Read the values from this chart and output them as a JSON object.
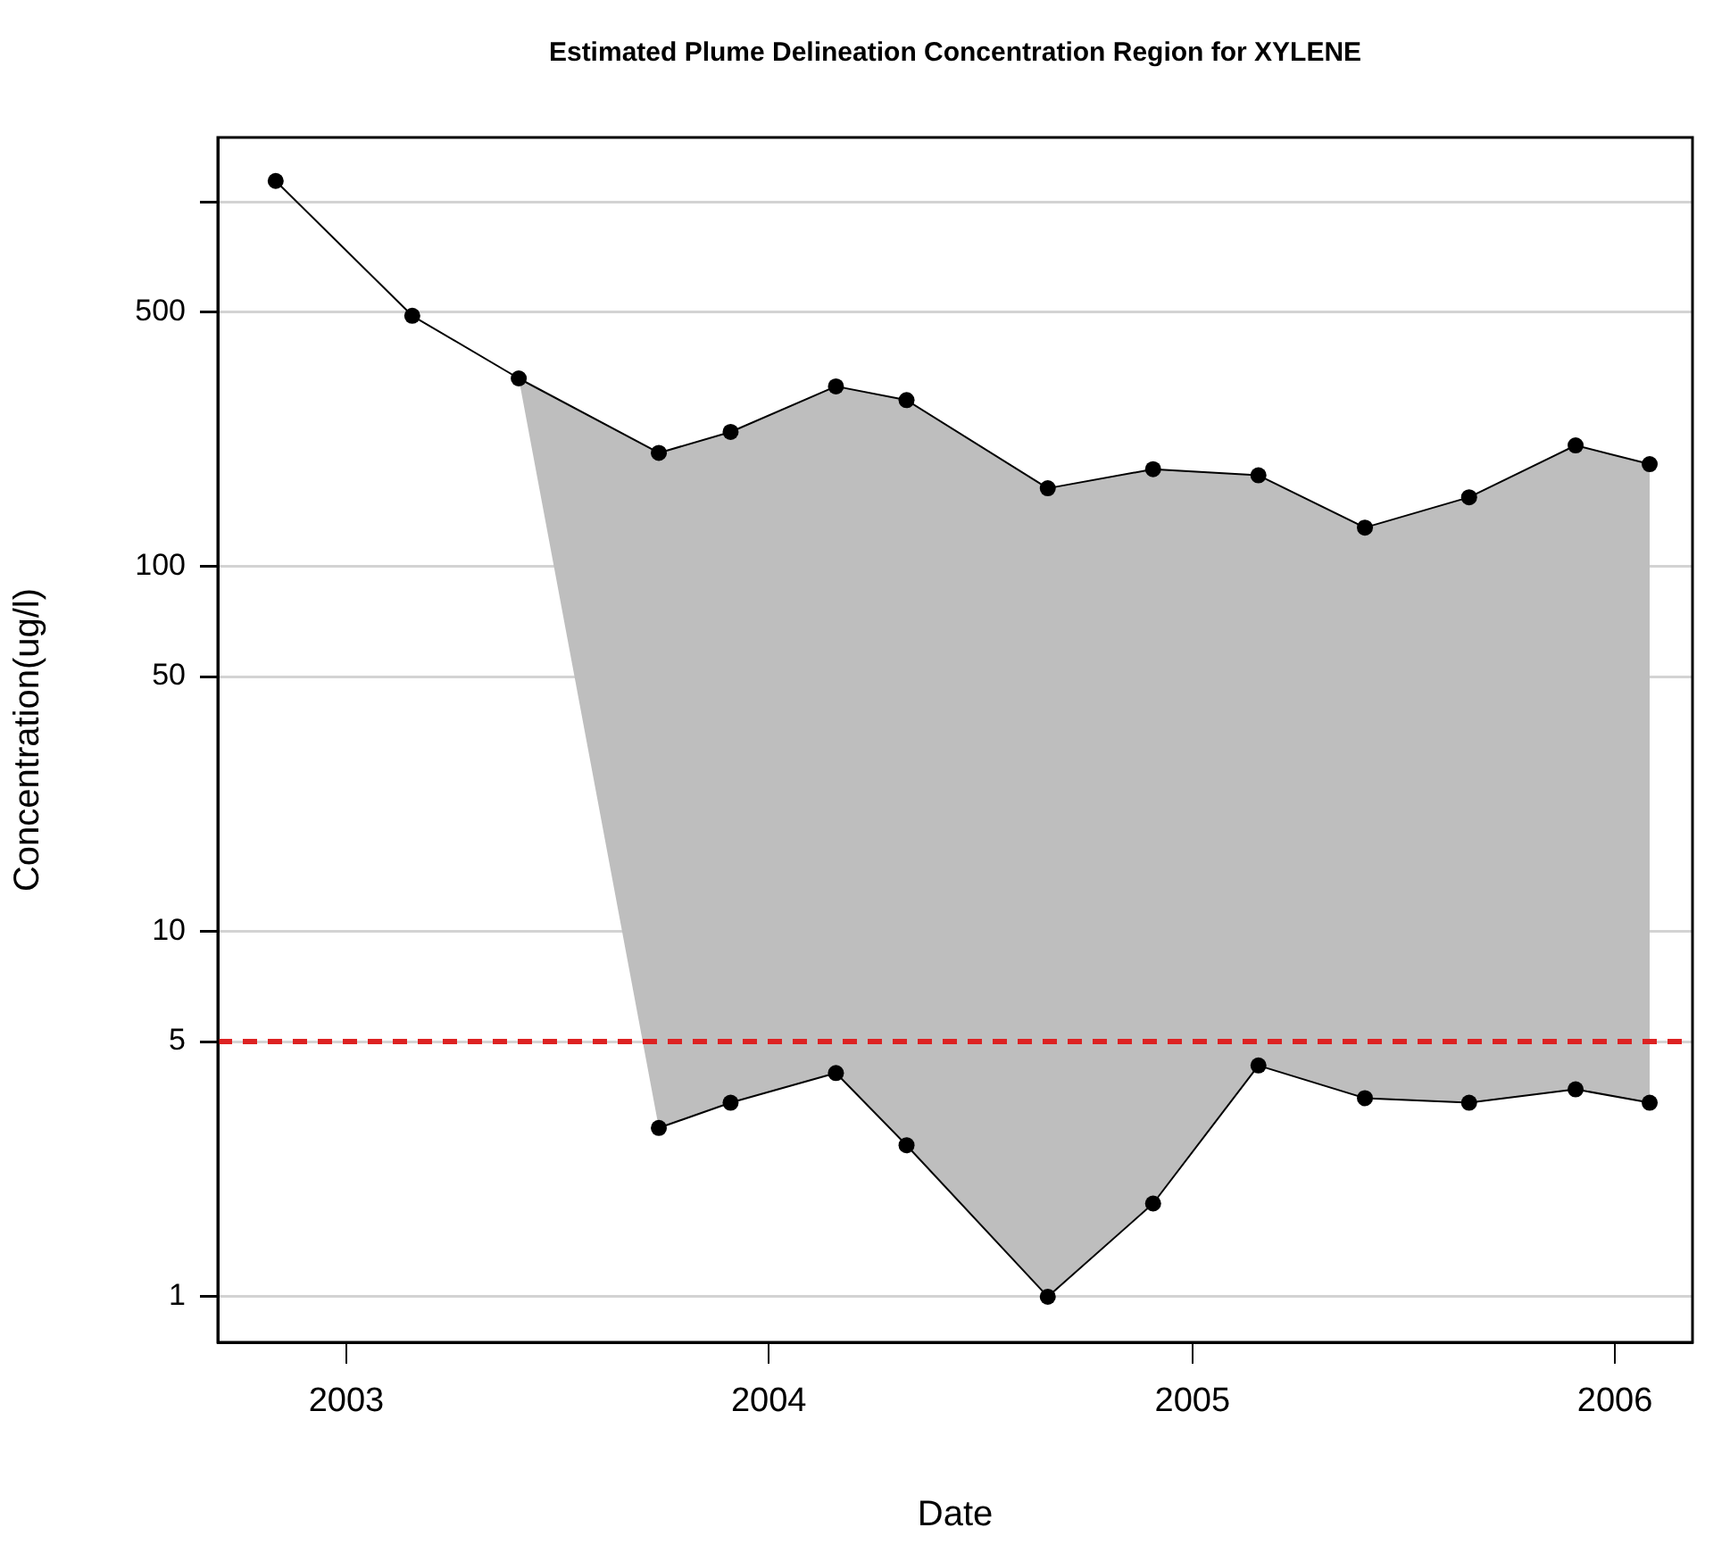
{
  "chart_data": {
    "type": "line",
    "title": "Estimated Plume Delineation Concentration Region for XYLENE",
    "xlabel": "Date",
    "ylabel": "Concentration(ug/l)",
    "log": "y",
    "grid": "y",
    "legend": false,
    "marker": "circle",
    "line_style": "solid",
    "xlim": [
      "2002-09-12",
      "2006-03-09"
    ],
    "xticks": [
      {
        "value": "2003-01-01",
        "label": "2003"
      },
      {
        "value": "2004-01-01",
        "label": "2004"
      },
      {
        "value": "2005-01-01",
        "label": "2005"
      },
      {
        "value": "2006-01-01",
        "label": "2006"
      }
    ],
    "ylim": [
      0.75,
      1500
    ],
    "yticks": [
      1,
      5,
      10,
      50,
      100,
      500,
      {
        "value": 1000,
        "label": null
      }
    ],
    "ref_lines": [
      {
        "axis": "y",
        "value": 5,
        "color": "#dd2222",
        "line_style": "dashed"
      }
    ],
    "series": [
      {
        "color": "#000000",
        "x": [
          "2002-11-01",
          "2003-02-27",
          "2003-05-30",
          "2003-09-28",
          "2003-11-29",
          "2004-02-28",
          "2004-04-29",
          "2004-08-29",
          "2004-11-28",
          "2005-02-27",
          "2005-05-30",
          "2005-08-28",
          "2005-11-28",
          "2006-01-31"
        ],
        "values": [
          1140,
          487,
          328,
          205,
          234,
          312,
          286,
          164,
          185,
          178,
          128,
          155,
          215,
          191
        ],
        "lower": [
          null,
          null,
          328,
          2.9,
          3.4,
          4.1,
          2.6,
          1.0,
          1.8,
          4.3,
          3.5,
          3.4,
          3.7,
          3.4
        ],
        "upper": [
          null,
          null,
          328,
          205,
          234,
          312,
          286,
          164,
          185,
          178,
          128,
          155,
          215,
          191
        ]
      },
      {
        "color": "#000000",
        "x": [
          "2003-09-28",
          "2003-11-29",
          "2004-02-28",
          "2004-04-29",
          "2004-08-29",
          "2004-11-28",
          "2005-02-27",
          "2005-05-30",
          "2005-08-28",
          "2005-11-28",
          "2006-01-31"
        ],
        "values": [
          2.9,
          3.4,
          4.1,
          2.6,
          1.0,
          1.8,
          4.3,
          3.5,
          3.4,
          3.7,
          3.4
        ]
      }
    ]
  }
}
